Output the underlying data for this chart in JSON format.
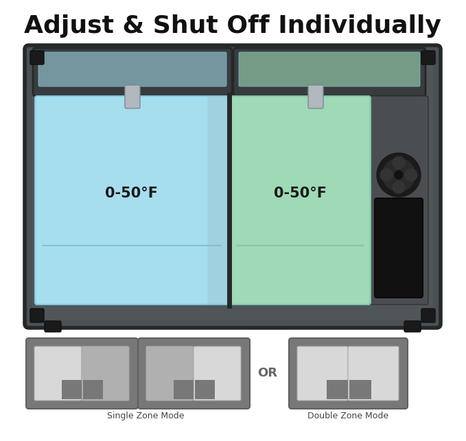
{
  "title": "Adjust & Shut Off Individually",
  "title_fontsize": 26,
  "title_fontweight": "bold",
  "bg_color": "#ffffff",
  "left_zone_color": "#a8e0f0",
  "right_zone_color": "#a8e8c0",
  "zone_label": "0-50°F",
  "zone_label_fontsize": 15,
  "zone_label_color": "#1a1a1a",
  "fridge_dark": "#3a3e40",
  "fridge_mid": "#4a5055",
  "fridge_frame": "#252828",
  "icon_dark": "#787878",
  "icon_light": "#d8d8d8",
  "icon_dim": "#b0b0b0",
  "single_zone_label": "Single Zone Mode",
  "double_zone_label": "Double Zone Mode",
  "or_text": "OR",
  "icon_label_fontsize": 9,
  "or_fontsize": 13
}
